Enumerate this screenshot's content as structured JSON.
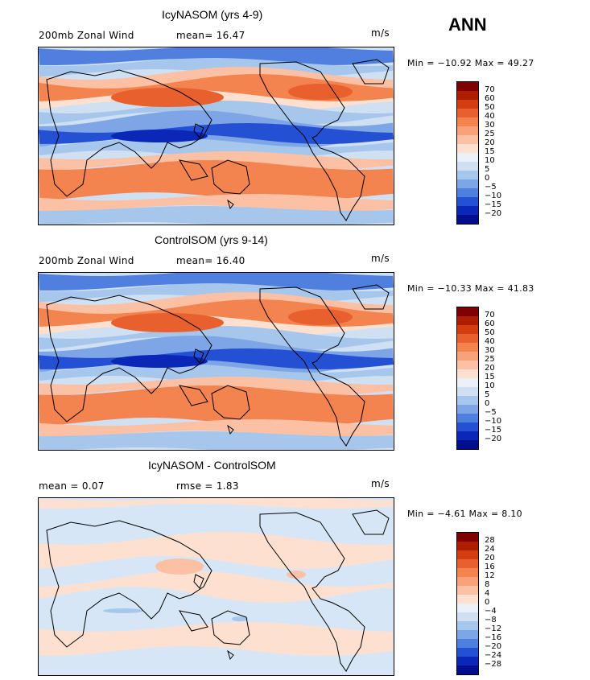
{
  "season": "ANN",
  "panels": [
    {
      "title": "IcyNASOM (yrs 4-9)",
      "left_label": "200mb Zonal Wind",
      "mid_label": "mean=  16.47",
      "units": "m/s",
      "minmax": "Min = −10.92 Max =  49.27",
      "kind": "field",
      "colorbar_labels": [
        "70",
        "60",
        "50",
        "40",
        "30",
        "25",
        "20",
        "15",
        "10",
        "5",
        "0",
        "−5",
        "−10",
        "−15",
        "−20"
      ],
      "colorbar_colors": [
        "#7f0000",
        "#b01e00",
        "#d43c12",
        "#e8602e",
        "#f3834f",
        "#f9a178",
        "#fcc0a4",
        "#fde0cf",
        "#eaf1f8",
        "#cfe0f2",
        "#a7c6ec",
        "#7ea6e6",
        "#4f7fdf",
        "#2451d4",
        "#0a27b7",
        "#000e8c"
      ]
    },
    {
      "title": "ControlSOM (yrs 9-14)",
      "left_label": "200mb Zonal Wind",
      "mid_label": "mean=  16.40",
      "units": "m/s",
      "minmax": "Min = −10.33 Max =  41.83",
      "kind": "field",
      "colorbar_labels": [
        "70",
        "60",
        "50",
        "40",
        "30",
        "25",
        "20",
        "15",
        "10",
        "5",
        "0",
        "−5",
        "−10",
        "−15",
        "−20"
      ],
      "colorbar_colors": [
        "#7f0000",
        "#b01e00",
        "#d43c12",
        "#e8602e",
        "#f3834f",
        "#f9a178",
        "#fcc0a4",
        "#fde0cf",
        "#eaf1f8",
        "#cfe0f2",
        "#a7c6ec",
        "#7ea6e6",
        "#4f7fdf",
        "#2451d4",
        "#0a27b7",
        "#000e8c"
      ]
    },
    {
      "title": "IcyNASOM - ControlSOM",
      "left_label": "mean =   0.07",
      "mid_label": "rmse =   1.83",
      "units": "m/s",
      "minmax": "Min =  −4.61 Max =   8.10",
      "kind": "diff",
      "colorbar_labels": [
        "28",
        "24",
        "20",
        "16",
        "12",
        "8",
        "4",
        "0",
        "−4",
        "−8",
        "−12",
        "−16",
        "−20",
        "−24",
        "−28"
      ],
      "colorbar_colors": [
        "#7f0000",
        "#b01e00",
        "#d43c12",
        "#e8602e",
        "#f3834f",
        "#f9a178",
        "#fcc0a4",
        "#fde0cf",
        "#eaf1f8",
        "#cfe0f2",
        "#a7c6ec",
        "#7ea6e6",
        "#4f7fdf",
        "#2451d4",
        "#0a27b7",
        "#000e8c"
      ]
    }
  ]
}
